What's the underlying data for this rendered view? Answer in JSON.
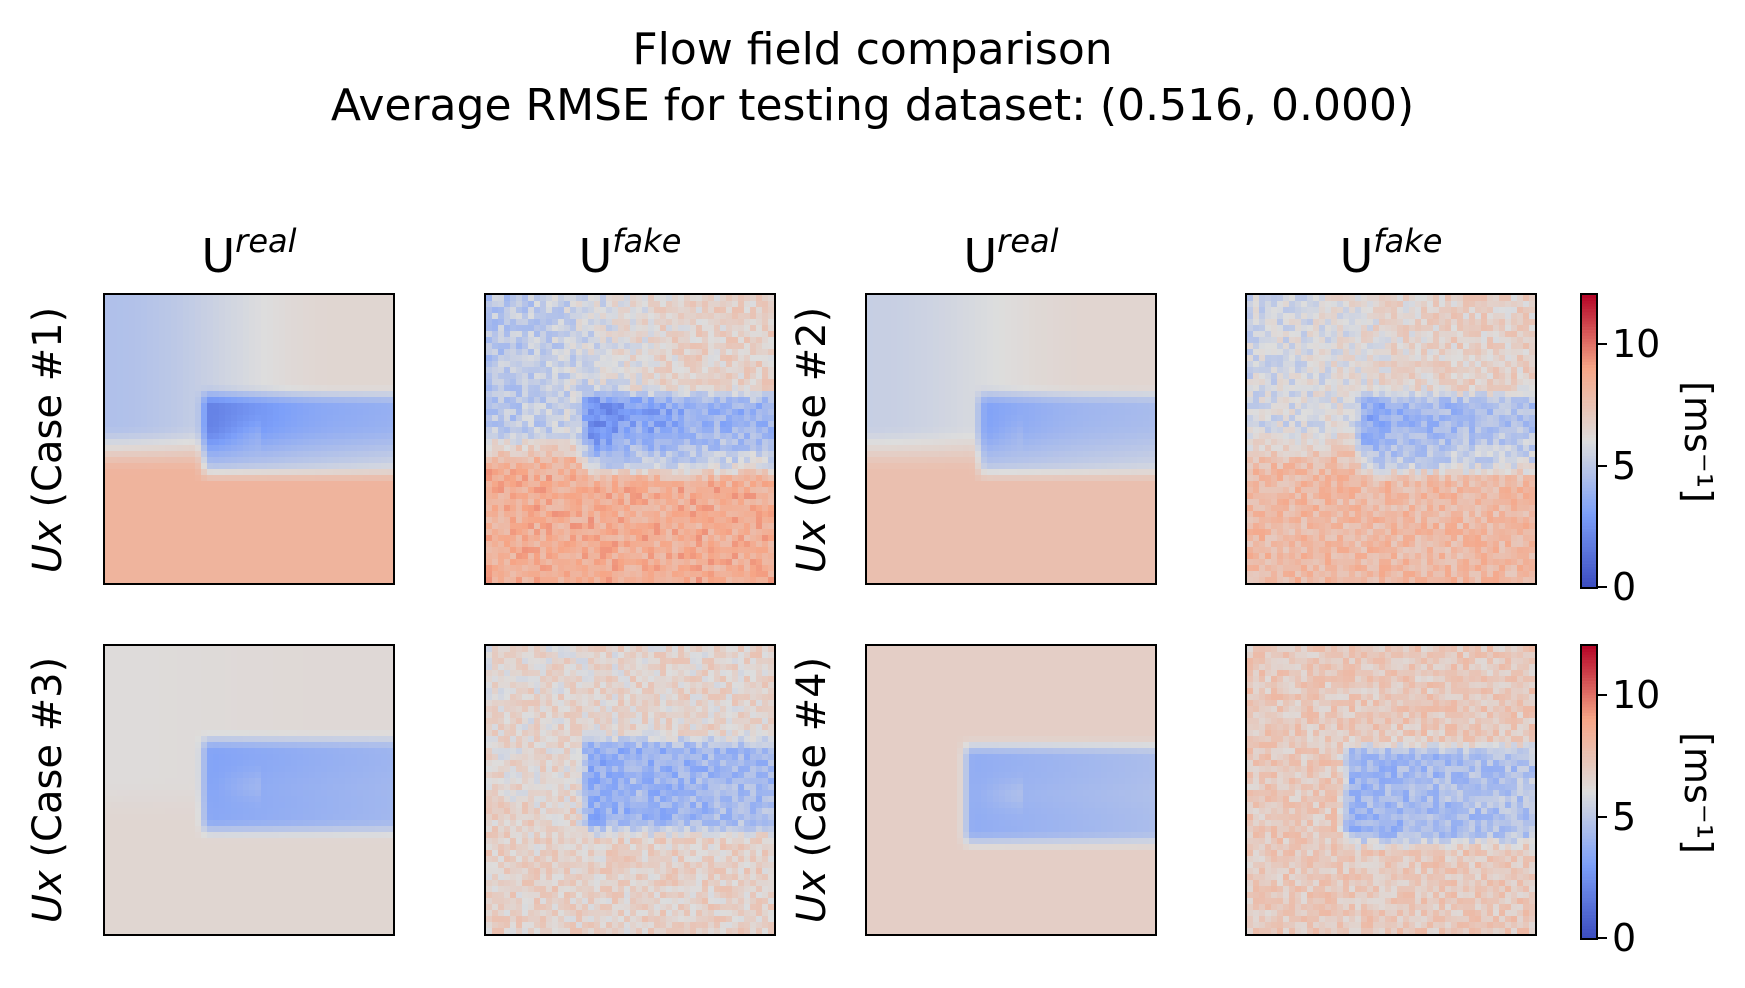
{
  "chart_data": {
    "type": "heatmap",
    "title": "Flow field comparison",
    "subtitle": "Average RMSE for testing dataset: (0.516, 0.000)",
    "column_titles": [
      {
        "base": "U",
        "sup": "real"
      },
      {
        "base": "U",
        "sup": "fake"
      },
      {
        "base": "U",
        "sup": "real"
      },
      {
        "base": "U",
        "sup": "fake"
      }
    ],
    "row_labels": [
      {
        "italic": "Ux",
        "text": " (Case #1)"
      },
      {
        "italic": "Ux",
        "text": " (Case #2)"
      },
      {
        "italic": "Ux",
        "text": " (Case #3)"
      },
      {
        "italic": "Ux",
        "text": " (Case #4)"
      }
    ],
    "colormap": "coolwarm",
    "vmin": 0,
    "vmax": 12,
    "colorbar_ticks": [
      "0",
      "5",
      "10"
    ],
    "colorbar_label": "[ms⁻¹]",
    "grid": false,
    "cases": [
      {
        "name": "Case #1",
        "freestream": 8.2,
        "upper_stream": 4.6,
        "wake_deficit": 4.0,
        "wake_x_start": 0.33,
        "wake_y": [
          0.35,
          0.62
        ]
      },
      {
        "name": "Case #2",
        "freestream": 7.6,
        "upper_stream": 5.3,
        "wake_deficit": 3.2,
        "wake_x_start": 0.38,
        "wake_y": [
          0.35,
          0.62
        ]
      },
      {
        "name": "Case #3",
        "freestream": 6.4,
        "upper_stream": 6.1,
        "wake_deficit": 3.4,
        "wake_x_start": 0.33,
        "wake_y": [
          0.33,
          0.64
        ]
      },
      {
        "name": "Case #4",
        "freestream": 6.8,
        "upper_stream": 6.8,
        "wake_deficit": 3.6,
        "wake_x_start": 0.33,
        "wake_y": [
          0.35,
          0.68
        ]
      }
    ]
  }
}
